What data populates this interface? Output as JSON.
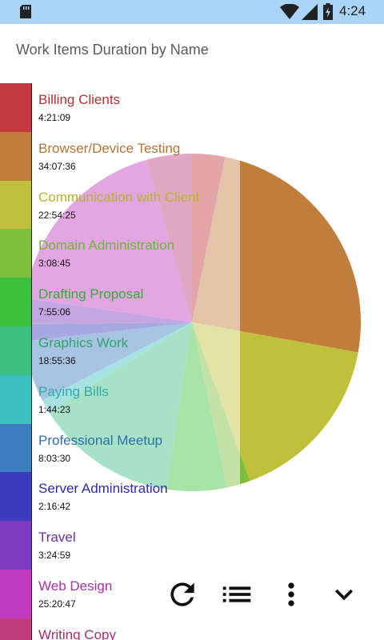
{
  "status_bar": {
    "time": "4:24"
  },
  "header": {
    "title": "Work Items Duration by Name"
  },
  "chart_data": {
    "type": "pie",
    "title": "Work Items Duration by Name",
    "slices": [
      {
        "name": "Billing Clients",
        "duration": "4:21:09",
        "value": 4.3525,
        "color": "#c4393f",
        "label_color": "#b0312f"
      },
      {
        "name": "Browser/Device Testing",
        "duration": "34:07:36",
        "value": 34.1267,
        "color": "#c07d3c",
        "label_color": "#b07336"
      },
      {
        "name": "Communication with Client",
        "duration": "22:54:25",
        "value": 22.9069,
        "color": "#c0c03a",
        "label_color": "#b4b42c"
      },
      {
        "name": "Domain Administration",
        "duration": "3:08:45",
        "value": 3.1458,
        "color": "#7dbf3d",
        "label_color": "#6db337"
      },
      {
        "name": "Drafting Proposal",
        "duration": "7:55:06",
        "value": 7.9183,
        "color": "#3cbf3c",
        "label_color": "#34a934"
      },
      {
        "name": "Graphics Work",
        "duration": "18:55:36",
        "value": 18.9267,
        "color": "#3cbf80",
        "label_color": "#2fa46b"
      },
      {
        "name": "Paying Bills",
        "duration": "1:44:23",
        "value": 1.7397,
        "color": "#3cbfbf",
        "label_color": "#2ea9a9"
      },
      {
        "name": "Professional Meetup",
        "duration": "8:03:30",
        "value": 8.0583,
        "color": "#3c7dbf",
        "label_color": "#2f6ca9"
      },
      {
        "name": "Server Administration",
        "duration": "2:16:42",
        "value": 2.2783,
        "color": "#3c3cbf",
        "label_color": "#2a2aa9"
      },
      {
        "name": "Travel",
        "duration": "3:24:59",
        "value": 3.4164,
        "color": "#7d3cbf",
        "label_color": "#6c2ea9"
      },
      {
        "name": "Web Design",
        "duration": "25:20:47",
        "value": 25.3464,
        "color": "#bf3cbf",
        "label_color": "#a92ea9"
      },
      {
        "name": "Writing Copy",
        "duration": "",
        "value": 6.0,
        "color": "#bf3c7d",
        "label_color": "#a92e69"
      }
    ]
  },
  "toolbar": {
    "refresh_icon": "refresh-icon",
    "list_icon": "list-icon",
    "more_icon": "more-vert-icon",
    "collapse_icon": "chevron-down-icon"
  }
}
